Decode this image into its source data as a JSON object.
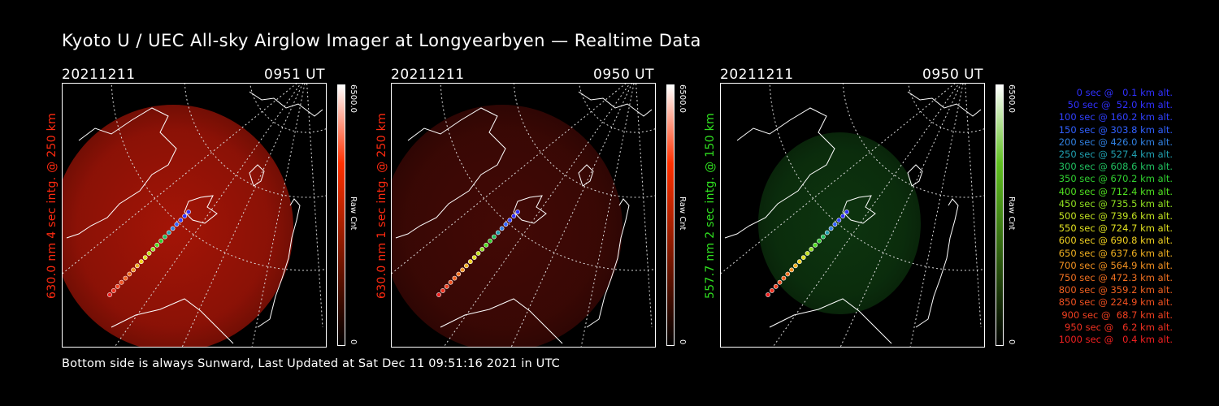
{
  "title": "Kyoto U / UEC All-sky Airglow Imager at Longyearbyen — Realtime Data",
  "footer": "Bottom side is always Sunward, Last Updated at Sat Dec 11 09:51:16 2021 in UTC",
  "panels": [
    {
      "date": "20211211",
      "time": "0951 UT",
      "ylabel": "630.0 nm 4 sec intg. @ 250 km",
      "ylabel_color": "#ff2a10",
      "cbar_max": "6500.0",
      "cbar_min": "0",
      "cbar_unit": "Raw Cnt",
      "cbar_top": "#ffffff",
      "cbar_mid": "#ff3000",
      "cbar_bot": "#000000",
      "glow": "#c01808",
      "glow_opacity": 0.85
    },
    {
      "date": "20211211",
      "time": "0950 UT",
      "ylabel": "630.0 nm 1 sec intg. @ 250 km",
      "ylabel_color": "#ff2a10",
      "cbar_max": "6500.0",
      "cbar_min": "0",
      "cbar_unit": "Raw Cnt",
      "cbar_top": "#ffffff",
      "cbar_mid": "#ff3000",
      "cbar_bot": "#000000",
      "glow": "#4a0a06",
      "glow_opacity": 0.9
    },
    {
      "date": "20211211",
      "time": "0950 UT",
      "ylabel": "557.7 nm 2 sec intg. @ 150 km",
      "ylabel_color": "#30e020",
      "cbar_max": "6500.0",
      "cbar_min": "0",
      "cbar_unit": "Raw Cnt",
      "cbar_top": "#ffffff",
      "cbar_mid": "#60c020",
      "cbar_bot": "#000000",
      "glow": "#0e3a10",
      "glow_opacity": 0.9
    }
  ],
  "legend": [
    {
      "text": "0 sec @   0.1 km alt.",
      "color": "#3030ff"
    },
    {
      "text": "50 sec @  52.0 km alt.",
      "color": "#3030ff"
    },
    {
      "text": "100 sec @ 160.2 km alt.",
      "color": "#3040ff"
    },
    {
      "text": "150 sec @ 303.8 km alt.",
      "color": "#3060ff"
    },
    {
      "text": "200 sec @ 426.0 km alt.",
      "color": "#3080e0"
    },
    {
      "text": "250 sec @ 527.4 km alt.",
      "color": "#20a0b0"
    },
    {
      "text": "300 sec @ 608.6 km alt.",
      "color": "#20c060"
    },
    {
      "text": "350 sec @ 670.2 km alt.",
      "color": "#30d030"
    },
    {
      "text": "400 sec @ 712.4 km alt.",
      "color": "#50e020"
    },
    {
      "text": "450 sec @ 735.5 km alt.",
      "color": "#90e020"
    },
    {
      "text": "500 sec @ 739.6 km alt.",
      "color": "#c0e020"
    },
    {
      "text": "550 sec @ 724.7 km alt.",
      "color": "#e0e020"
    },
    {
      "text": "600 sec @ 690.8 km alt.",
      "color": "#f0d020"
    },
    {
      "text": "650 sec @ 637.6 km alt.",
      "color": "#f0b020"
    },
    {
      "text": "700 sec @ 564.9 km alt.",
      "color": "#f09020"
    },
    {
      "text": "750 sec @ 472.3 km alt.",
      "color": "#f07020"
    },
    {
      "text": "800 sec @ 359.2 km alt.",
      "color": "#f06020"
    },
    {
      "text": "850 sec @ 224.9 km alt.",
      "color": "#f05020"
    },
    {
      "text": "900 sec @  68.7 km alt.",
      "color": "#f04020"
    },
    {
      "text": "950 sec @   6.2 km alt.",
      "color": "#f03020"
    },
    {
      "text": "1000 sec @   0.4 km alt.",
      "color": "#f02020"
    }
  ]
}
